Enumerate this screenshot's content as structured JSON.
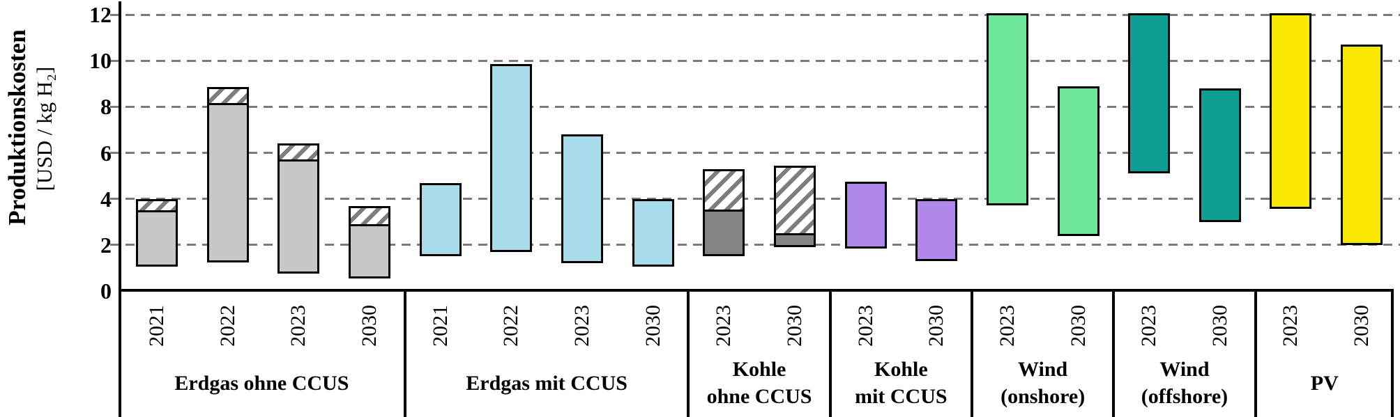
{
  "y_axis": {
    "title": "Produktionskosten",
    "unit": "[USD / kg H₂]",
    "tick_labels": [
      "0",
      "2",
      "4",
      "6",
      "8",
      "10",
      "12"
    ],
    "tick_values": [
      0,
      2,
      4,
      6,
      8,
      10,
      12
    ]
  },
  "chart_data": {
    "type": "bar",
    "variant": "floating-range-bars",
    "title": "",
    "ylabel": "Produktionskosten [USD / kg H₂]",
    "ylim": [
      0,
      12.6
    ],
    "grid": "horizontal-dashed",
    "legend_position": "none",
    "colors": {
      "erdgas_fill": "#c7c7c7",
      "kohle_fill": "#848484",
      "hatch_stripe": "#7d7d7d",
      "erdgas_ccus_fill": "#a8dcea",
      "kohle_ccus_fill": "#b087ea",
      "wind_onshore_fill": "#6fe79b",
      "wind_offshore_fill": "#0d9e94",
      "pv_fill": "#f8e800",
      "bar_border": "#000000",
      "gridline": "#7a7a7a"
    },
    "groups": [
      {
        "key": "erdgas-ohne-ccus",
        "label_lines": [
          "Erdgas ohne CCUS"
        ],
        "color": "#c7c7c7",
        "hatched": true,
        "bars": [
          {
            "year": "2021",
            "low": 1.05,
            "solid_top": 3.5,
            "high": 4.0
          },
          {
            "year": "2022",
            "low": 1.25,
            "solid_top": 8.15,
            "high": 8.85
          },
          {
            "year": "2023",
            "low": 0.75,
            "solid_top": 5.7,
            "high": 6.4
          },
          {
            "year": "2030",
            "low": 0.55,
            "solid_top": 2.9,
            "high": 3.7
          }
        ]
      },
      {
        "key": "erdgas-mit-ccus",
        "label_lines": [
          "Erdgas mit CCUS"
        ],
        "color": "#a8dcea",
        "hatched": false,
        "bars": [
          {
            "year": "2021",
            "low": 1.5,
            "high": 4.7
          },
          {
            "year": "2022",
            "low": 1.7,
            "high": 9.85
          },
          {
            "year": "2023",
            "low": 1.2,
            "high": 6.8
          },
          {
            "year": "2030",
            "low": 1.05,
            "high": 4.0
          }
        ]
      },
      {
        "key": "kohle-ohne-ccus",
        "label_lines": [
          "Kohle",
          "ohne CCUS"
        ],
        "color": "#848484",
        "hatched": true,
        "bars": [
          {
            "year": "2023",
            "low": 1.5,
            "solid_top": 3.55,
            "high": 5.3
          },
          {
            "year": "2030",
            "low": 1.9,
            "solid_top": 2.5,
            "high": 5.45
          }
        ]
      },
      {
        "key": "kohle-mit-ccus",
        "label_lines": [
          "Kohle",
          "mit CCUS"
        ],
        "color": "#b087ea",
        "hatched": false,
        "bars": [
          {
            "year": "2023",
            "low": 1.85,
            "high": 4.75
          },
          {
            "year": "2030",
            "low": 1.3,
            "high": 4.0
          }
        ]
      },
      {
        "key": "wind-onshore",
        "label_lines": [
          "Wind",
          "(onshore)"
        ],
        "color": "#6fe79b",
        "hatched": false,
        "bars": [
          {
            "year": "2023",
            "low": 3.7,
            "high": 12.05
          },
          {
            "year": "2030",
            "low": 2.4,
            "high": 8.9
          }
        ]
      },
      {
        "key": "wind-offshore",
        "label_lines": [
          "Wind",
          "(offshore)"
        ],
        "color": "#0d9e94",
        "hatched": false,
        "bars": [
          {
            "year": "2023",
            "low": 5.1,
            "high": 12.05
          },
          {
            "year": "2030",
            "low": 3.0,
            "high": 8.8
          }
        ]
      },
      {
        "key": "pv",
        "label_lines": [
          "PV"
        ],
        "color": "#f8e800",
        "hatched": false,
        "bars": [
          {
            "year": "2023",
            "low": 3.55,
            "high": 12.05
          },
          {
            "year": "2030",
            "low": 2.0,
            "high": 10.7
          }
        ]
      }
    ]
  }
}
